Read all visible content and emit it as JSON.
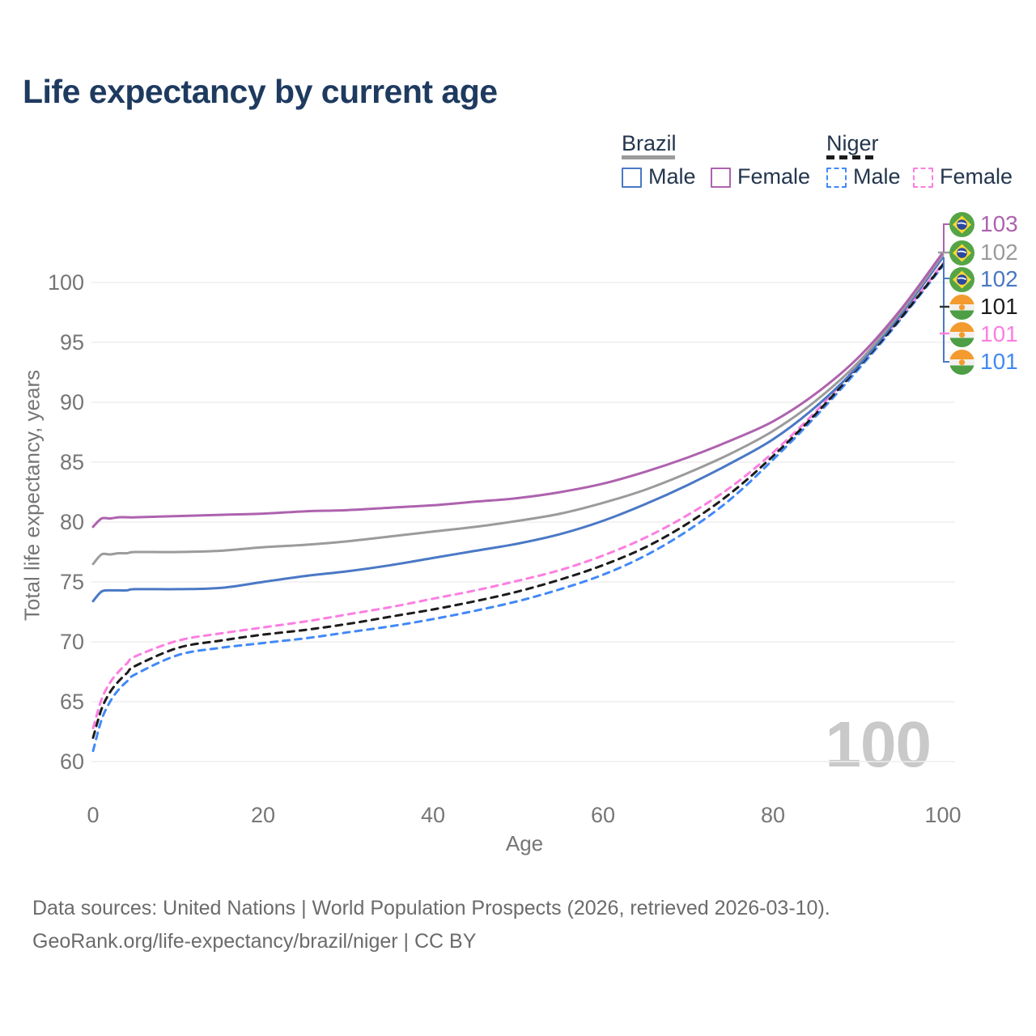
{
  "title": "Life expectancy by current age",
  "watermark": "100",
  "legend": {
    "brazil": {
      "label": "Brazil",
      "series_color": "#9b9b9b",
      "male_label": "Male",
      "male_color": "#4a78c5",
      "female_label": "Female",
      "female_color": "#ae62ae"
    },
    "niger": {
      "label": "Niger",
      "series_color": "#1c1c1c",
      "male_label": "Male",
      "male_color": "#4289f5",
      "female_label": "Female",
      "female_color": "#fc7ee1"
    }
  },
  "end_labels": [
    {
      "flag": "brazil",
      "value": "103",
      "color": "#ae62ae"
    },
    {
      "flag": "brazil",
      "value": "102",
      "color": "#9b9b9b"
    },
    {
      "flag": "brazil",
      "value": "102",
      "color": "#4a78c5"
    },
    {
      "flag": "niger",
      "value": "101",
      "color": "#1c1c1c"
    },
    {
      "flag": "niger",
      "value": "101",
      "color": "#fc7ee1"
    },
    {
      "flag": "niger",
      "value": "101",
      "color": "#4289f5"
    }
  ],
  "chart_data": {
    "type": "line",
    "title": "Life expectancy by current age",
    "xlabel": "Age",
    "ylabel": "Total life expectancy, years",
    "xlim": [
      0,
      100
    ],
    "ylim": [
      60,
      103
    ],
    "x_ticks": [
      0,
      20,
      40,
      60,
      80,
      100
    ],
    "y_ticks": [
      60,
      65,
      70,
      75,
      80,
      85,
      90,
      95,
      100
    ],
    "grid": "horizontal",
    "legend_position": "top-right",
    "x": [
      0,
      1,
      2,
      3,
      4,
      5,
      10,
      15,
      20,
      25,
      30,
      35,
      40,
      45,
      50,
      55,
      60,
      65,
      70,
      75,
      80,
      85,
      90,
      95,
      100
    ],
    "series": [
      {
        "name": "Brazil Female",
        "color": "#ae62ae",
        "dashed": false,
        "end_label": 103,
        "values": [
          79.6,
          80.3,
          80.3,
          80.4,
          80.4,
          80.4,
          80.5,
          80.6,
          80.7,
          80.9,
          81.0,
          81.2,
          81.4,
          81.7,
          82.0,
          82.5,
          83.2,
          84.2,
          85.4,
          86.8,
          88.4,
          90.7,
          93.7,
          97.7,
          102.5
        ]
      },
      {
        "name": "Brazil Both sexes",
        "color": "#9b9b9b",
        "dashed": false,
        "end_label": 102,
        "values": [
          76.5,
          77.3,
          77.3,
          77.4,
          77.4,
          77.5,
          77.5,
          77.6,
          77.9,
          78.1,
          78.4,
          78.8,
          79.2,
          79.6,
          80.1,
          80.7,
          81.6,
          82.7,
          84.1,
          85.7,
          87.6,
          90.1,
          93.3,
          97.5,
          102.3
        ]
      },
      {
        "name": "Brazil Male",
        "color": "#4a78c5",
        "dashed": false,
        "end_label": 102,
        "values": [
          73.4,
          74.2,
          74.3,
          74.3,
          74.3,
          74.4,
          74.4,
          74.5,
          75.0,
          75.5,
          75.9,
          76.4,
          77.0,
          77.6,
          78.2,
          79.0,
          80.1,
          81.5,
          83.1,
          84.9,
          86.9,
          89.6,
          93.0,
          97.3,
          102.1
        ]
      },
      {
        "name": "Niger Both sexes",
        "color": "#1c1c1c",
        "dashed": true,
        "end_label": 101,
        "values": [
          62.0,
          64.4,
          65.8,
          66.7,
          67.4,
          68.0,
          69.5,
          70.1,
          70.6,
          71.0,
          71.5,
          72.1,
          72.7,
          73.4,
          74.2,
          75.2,
          76.4,
          77.9,
          79.9,
          82.4,
          85.5,
          89.0,
          92.9,
          97.0,
          101.5
        ]
      },
      {
        "name": "Niger Female",
        "color": "#fc7ee1",
        "dashed": true,
        "end_label": 101,
        "values": [
          62.8,
          65.2,
          66.6,
          67.5,
          68.2,
          68.8,
          70.1,
          70.7,
          71.2,
          71.7,
          72.3,
          72.9,
          73.6,
          74.3,
          75.1,
          76.0,
          77.2,
          78.7,
          80.6,
          82.9,
          85.8,
          89.2,
          93.1,
          97.1,
          101.6
        ]
      },
      {
        "name": "Niger Male",
        "color": "#4289f5",
        "dashed": true,
        "end_label": 101,
        "values": [
          60.9,
          63.5,
          65.0,
          66.0,
          66.7,
          67.3,
          68.9,
          69.5,
          69.9,
          70.3,
          70.8,
          71.3,
          71.9,
          72.6,
          73.4,
          74.4,
          75.6,
          77.2,
          79.3,
          81.9,
          85.2,
          88.8,
          92.7,
          96.9,
          101.4
        ]
      }
    ]
  },
  "footer": {
    "line1": "Data sources: United Nations | World Population Prospects (2026, retrieved 2026-03-10).",
    "line2": "GeoRank.org/life-expectancy/brazil/niger | CC BY"
  }
}
